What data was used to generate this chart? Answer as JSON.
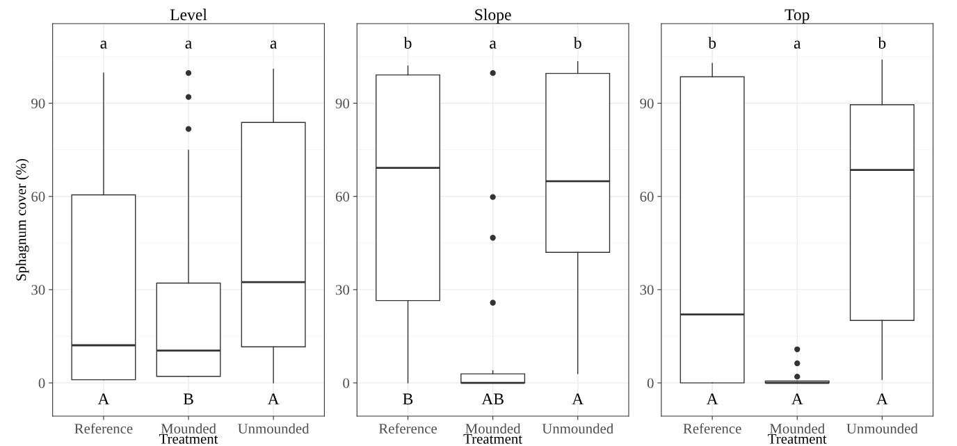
{
  "chart_data": [
    {
      "type": "box",
      "title": "Level",
      "xlabel": "Treatment",
      "ylabel": "Sphagnum cover (%)",
      "categories": [
        "Reference",
        "Mounded",
        "Unmounded"
      ],
      "color": "#333333",
      "boxes": [
        {
          "low": 1.0,
          "q1": 1.0,
          "median": 12.1,
          "q3": 60.5,
          "high": 99.7
        },
        {
          "low": 2.1,
          "q1": 2.1,
          "median": 10.4,
          "q3": 32.1,
          "high": 74.9,
          "outliers": [
            99.7,
            92.0,
            81.7
          ]
        },
        {
          "low": 0,
          "q1": 11.6,
          "median": 32.4,
          "q3": 83.8,
          "high": 100.9
        }
      ],
      "ylim": [
        -10.7,
        115.6
      ],
      "yticks": [
        0,
        {
          "value": 15,
          "label": null
        },
        30,
        {
          "value": 45,
          "label": null
        },
        60,
        {
          "value": 75,
          "label": null
        },
        90,
        {
          "value": 105,
          "label": null
        }
      ],
      "grid": true,
      "annotations": [
        "a",
        "a",
        "a",
        "A",
        "B",
        "A"
      ]
    },
    {
      "type": "box",
      "title": "Slope",
      "xlabel": "Treatment",
      "categories": [
        "Reference",
        "Mounded",
        "Unmounded"
      ],
      "color": "#333333",
      "boxes": [
        {
          "low": 0,
          "q1": 26.5,
          "median": 69.2,
          "q3": 99.1,
          "high": 102.0
        },
        {
          "low": 0,
          "q1": 0,
          "median": 0,
          "q3": 2.9,
          "high": 3.9,
          "outliers": [
            99.7,
            59.8,
            46.7,
            25.8
          ]
        },
        {
          "low": 3.0,
          "q1": 42.0,
          "median": 64.9,
          "q3": 99.6,
          "high": 103.4
        }
      ],
      "ylim": [
        -10.7,
        115.6
      ],
      "yticks": [
        0,
        {
          "value": 15,
          "label": null
        },
        30,
        {
          "value": 45,
          "label": null
        },
        60,
        {
          "value": 75,
          "label": null
        },
        90,
        {
          "value": 105,
          "label": null
        }
      ],
      "grid": true,
      "annotations": [
        "b",
        "a",
        "b",
        "B",
        "AB",
        "A"
      ]
    },
    {
      "type": "box",
      "title": "Top",
      "xlabel": "Treatment",
      "categories": [
        "Reference",
        "Mounded",
        "Unmounded"
      ],
      "color": "#333333",
      "boxes": [
        {
          "low": 0,
          "q1": 0,
          "median": 22.0,
          "q3": 98.5,
          "high": 102.8
        },
        {
          "low": 0,
          "q1": 0,
          "median": 0,
          "q3": 0.6,
          "high": 0.6,
          "outliers": [
            10.8,
            6.3,
            2.0
          ]
        },
        {
          "low": 1.1,
          "q1": 20.1,
          "median": 68.5,
          "q3": 89.5,
          "high": 103.9
        }
      ],
      "ylim": [
        -10.7,
        115.6
      ],
      "yticks": [
        0,
        {
          "value": 15,
          "label": null
        },
        30,
        {
          "value": 45,
          "label": null
        },
        60,
        {
          "value": 75,
          "label": null
        },
        90,
        {
          "value": 105,
          "label": null
        }
      ],
      "grid": true,
      "annotations": [
        "b",
        "a",
        "b",
        "A",
        "A",
        "A"
      ]
    }
  ]
}
